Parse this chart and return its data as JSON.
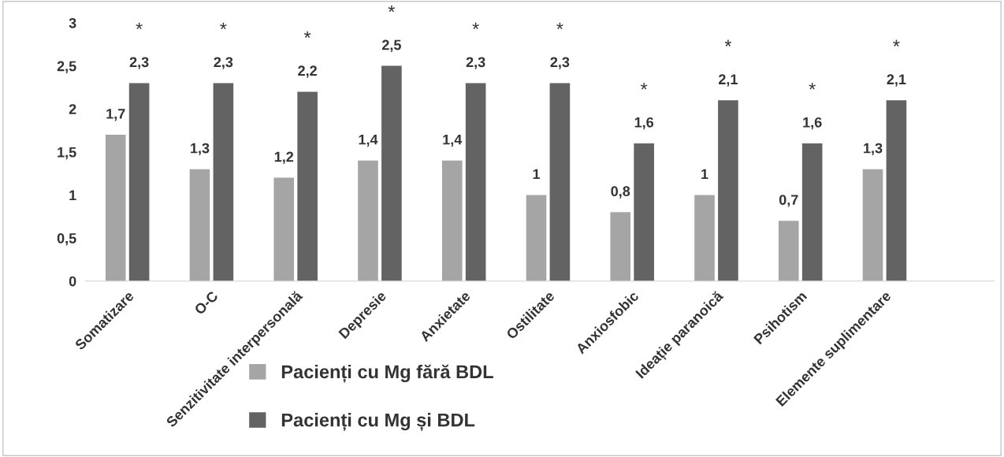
{
  "chart_data": {
    "type": "bar",
    "categories": [
      "Somatizare",
      "O-C",
      "Senzitivitate interpersonală",
      "Depresie",
      "Anxietate",
      "Ostilitate",
      "Anxiosfobic",
      "Ideație paranoică",
      "Psihotism",
      "Elemente suplimentare"
    ],
    "series": [
      {
        "name": "Pacienți cu Mg fără BDL",
        "color": "#a5a5a5",
        "values": [
          1.7,
          1.3,
          1.2,
          1.4,
          1.4,
          1.0,
          0.8,
          1.0,
          0.7,
          1.3
        ],
        "value_labels": [
          "1,7",
          "1,3",
          "1,2",
          "1,4",
          "1,4",
          "1",
          "0,8",
          "1",
          "0,7",
          "1,3"
        ]
      },
      {
        "name": "Pacienți cu Mg și BDL",
        "color": "#636363",
        "values": [
          2.3,
          2.3,
          2.2,
          2.5,
          2.3,
          2.3,
          1.6,
          2.1,
          1.6,
          2.1
        ],
        "value_labels": [
          "2,3",
          "2,3",
          "2,2",
          "2,5",
          "2,3",
          "2,3",
          "1,6",
          "2,1",
          "1,6",
          "2,1"
        ]
      }
    ],
    "ylim": [
      0,
      3
    ],
    "yticks": [
      0,
      {
        "value": 0.5,
        "label": "0,5"
      },
      1,
      {
        "value": 1.5,
        "label": "1,5"
      },
      2,
      {
        "value": 2.5,
        "label": "2,5"
      },
      3
    ],
    "annotations": [
      {
        "text": "*",
        "x": "Somatizare",
        "y": 2.3
      },
      {
        "text": "*",
        "x": "O-C",
        "y": 2.3
      },
      {
        "text": "*",
        "x": "Senzitivitate interpersonală",
        "y": 2.2
      },
      {
        "text": "*",
        "x": "Depresie",
        "y": 2.5
      },
      {
        "text": "*",
        "x": "Anxietate",
        "y": 2.3
      },
      {
        "text": "*",
        "x": "Ostilitate",
        "y": 2.3
      },
      {
        "text": "*",
        "x": "Anxiosfobic",
        "y": 1.6
      },
      {
        "text": "*",
        "x": "Ideație paranoică",
        "y": 2.1
      },
      {
        "text": "*",
        "x": "Psihotism",
        "y": 1.6
      },
      {
        "text": "*",
        "x": "Elemente suplimentare",
        "y": 2.1
      }
    ],
    "grid": false,
    "legend": "bottom"
  }
}
